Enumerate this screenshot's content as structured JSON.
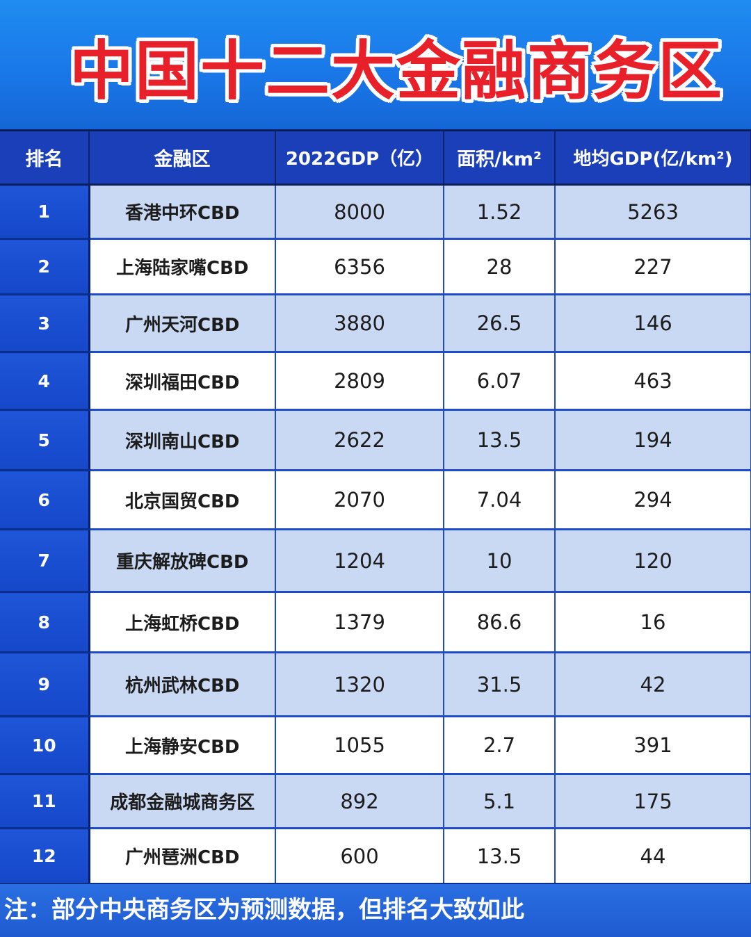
{
  "title": "中国十二大金融商务区",
  "table": {
    "headers": {
      "rank": "排名",
      "district": "金融区",
      "gdp": "2022GDP（亿）",
      "area": "面积/km²",
      "density": "地均GDP(亿/km²)"
    },
    "rows": [
      {
        "rank": "1",
        "district": "香港中环CBD",
        "gdp": "8000",
        "area": "1.52",
        "density": "5263"
      },
      {
        "rank": "2",
        "district": "上海陆家嘴CBD",
        "gdp": "6356",
        "area": "28",
        "density": "227"
      },
      {
        "rank": "3",
        "district": "广州天河CBD",
        "gdp": "3880",
        "area": "26.5",
        "density": "146"
      },
      {
        "rank": "4",
        "district": "深圳福田CBD",
        "gdp": "2809",
        "area": "6.07",
        "density": "463"
      },
      {
        "rank": "5",
        "district": "深圳南山CBD",
        "gdp": "2622",
        "area": "13.5",
        "density": "194"
      },
      {
        "rank": "6",
        "district": "北京国贸CBD",
        "gdp": "2070",
        "area": "7.04",
        "density": "294"
      },
      {
        "rank": "7",
        "district": "重庆解放碑CBD",
        "gdp": "1204",
        "area": "10",
        "density": "120"
      },
      {
        "rank": "8",
        "district": "上海虹桥CBD",
        "gdp": "1379",
        "area": "86.6",
        "density": "16"
      },
      {
        "rank": "9",
        "district": "杭州武林CBD",
        "gdp": "1320",
        "area": "31.5",
        "density": "42"
      },
      {
        "rank": "10",
        "district": "上海静安CBD",
        "gdp": "1055",
        "area": "2.7",
        "density": "391"
      },
      {
        "rank": "11",
        "district": "成都金融城商务区",
        "gdp": "892",
        "area": "5.1",
        "density": "175"
      },
      {
        "rank": "12",
        "district": "广州琶洲CBD",
        "gdp": "600",
        "area": "13.5",
        "density": "44"
      }
    ]
  },
  "note": "注：部分中央商务区为预测数据，但排名大致如此",
  "colors": {
    "background_blue": "#1565d8",
    "header_blue": "#1a3fb8",
    "title_red": "#e8202a",
    "row_shade": "#c9d8f3",
    "row_plain": "#ffffff"
  }
}
